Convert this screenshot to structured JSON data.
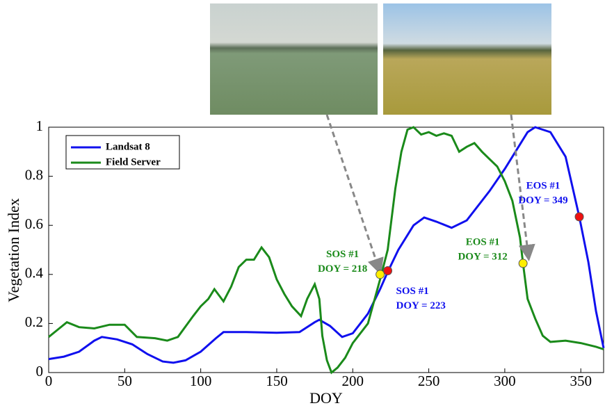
{
  "chart_data": {
    "type": "line",
    "xlabel": "DOY",
    "ylabel": "Vegetation Index",
    "xlim": [
      0,
      365
    ],
    "ylim": [
      0,
      1
    ],
    "xticks": [
      0,
      50,
      100,
      150,
      200,
      250,
      300,
      350
    ],
    "yticks": [
      0,
      0.2,
      0.4,
      0.6,
      0.8,
      1
    ],
    "legend": "upper left",
    "series": [
      {
        "name": "Landsat 8",
        "color": "#1010ee",
        "x": [
          0,
          10,
          20,
          30,
          35,
          45,
          55,
          65,
          75,
          82,
          90,
          100,
          110,
          115,
          130,
          150,
          165,
          175,
          178,
          185,
          193,
          200,
          210,
          218,
          223,
          230,
          240,
          247,
          255,
          265,
          275,
          290,
          300,
          310,
          315,
          320,
          330,
          340,
          349,
          355,
          360,
          365
        ],
        "values": [
          0.055,
          0.065,
          0.085,
          0.13,
          0.145,
          0.135,
          0.115,
          0.075,
          0.045,
          0.04,
          0.05,
          0.085,
          0.14,
          0.165,
          0.165,
          0.162,
          0.165,
          0.205,
          0.215,
          0.19,
          0.145,
          0.16,
          0.24,
          0.34,
          0.41,
          0.5,
          0.6,
          0.632,
          0.615,
          0.59,
          0.62,
          0.74,
          0.83,
          0.93,
          0.98,
          1.0,
          0.98,
          0.88,
          0.635,
          0.45,
          0.25,
          0.1
        ]
      },
      {
        "name": "Field Server",
        "color": "#1a8a1a",
        "x": [
          0,
          5,
          12,
          20,
          30,
          40,
          50,
          58,
          70,
          78,
          85,
          95,
          100,
          105,
          109,
          115,
          120,
          125,
          130,
          135,
          140,
          145,
          150,
          155,
          160,
          166,
          170,
          175,
          178,
          180,
          183,
          186,
          190,
          195,
          200,
          210,
          218,
          223,
          228,
          232,
          236,
          240,
          245,
          250,
          255,
          260,
          265,
          270,
          275,
          280,
          285,
          290,
          295,
          300,
          305,
          310,
          312,
          315,
          320,
          325,
          330,
          340,
          350,
          360,
          365
        ],
        "values": [
          0.145,
          0.17,
          0.205,
          0.185,
          0.18,
          0.195,
          0.195,
          0.145,
          0.14,
          0.13,
          0.145,
          0.23,
          0.27,
          0.3,
          0.34,
          0.29,
          0.35,
          0.43,
          0.46,
          0.46,
          0.51,
          0.47,
          0.38,
          0.32,
          0.27,
          0.23,
          0.3,
          0.36,
          0.3,
          0.15,
          0.05,
          0.0,
          0.02,
          0.06,
          0.12,
          0.2,
          0.38,
          0.5,
          0.75,
          0.9,
          0.99,
          1.0,
          0.97,
          0.98,
          0.965,
          0.975,
          0.965,
          0.9,
          0.92,
          0.935,
          0.9,
          0.87,
          0.84,
          0.78,
          0.7,
          0.55,
          0.445,
          0.3,
          0.22,
          0.15,
          0.125,
          0.13,
          0.12,
          0.105,
          0.095
        ]
      }
    ],
    "annotations": [
      {
        "lines": [
          "SOS #1",
          "DOY = 218"
        ],
        "x": 218,
        "y": 0.4,
        "color": "#1a8a1a",
        "marker_color": "#ffee00"
      },
      {
        "lines": [
          "SOS #1",
          "DOY = 223"
        ],
        "x": 223,
        "y": 0.415,
        "color": "#1010ee",
        "marker_color": "#ee1111"
      },
      {
        "lines": [
          "EOS #1",
          "DOY = 312"
        ],
        "x": 312,
        "y": 0.445,
        "color": "#1a8a1a",
        "marker_color": "#ffee00"
      },
      {
        "lines": [
          "EOS #1",
          "DOY = 349"
        ],
        "x": 349,
        "y": 0.635,
        "color": "#1010ee",
        "marker_color": "#ee1111"
      }
    ]
  }
}
